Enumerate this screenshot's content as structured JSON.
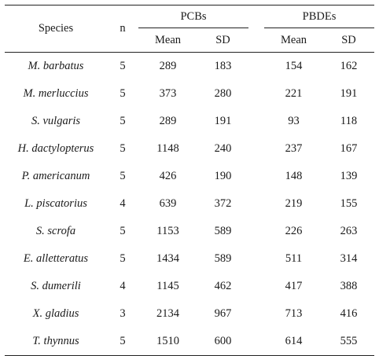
{
  "headers": {
    "species": "Species",
    "n": "n",
    "pcbs": "PCBs",
    "pbdes": "PBDEs",
    "mean": "Mean",
    "sd": "SD"
  },
  "rows": [
    {
      "species": "M. barbatus",
      "n": "5",
      "pcb_mean": "289",
      "pcb_sd": "183",
      "pbde_mean": "154",
      "pbde_sd": "162"
    },
    {
      "species": "M. merluccius",
      "n": "5",
      "pcb_mean": "373",
      "pcb_sd": "280",
      "pbde_mean": "221",
      "pbde_sd": "191"
    },
    {
      "species": "S. vulgaris",
      "n": "5",
      "pcb_mean": "289",
      "pcb_sd": "191",
      "pbde_mean": "93",
      "pbde_sd": "118"
    },
    {
      "species": "H. dactylopterus",
      "n": "5",
      "pcb_mean": "1148",
      "pcb_sd": "240",
      "pbde_mean": "237",
      "pbde_sd": "167"
    },
    {
      "species": "P. americanum",
      "n": "5",
      "pcb_mean": "426",
      "pcb_sd": "190",
      "pbde_mean": "148",
      "pbde_sd": "139"
    },
    {
      "species": "L. piscatorius",
      "n": "4",
      "pcb_mean": "639",
      "pcb_sd": "372",
      "pbde_mean": "219",
      "pbde_sd": "155"
    },
    {
      "species": "S. scrofa",
      "n": "5",
      "pcb_mean": "1153",
      "pcb_sd": "589",
      "pbde_mean": "226",
      "pbde_sd": "263"
    },
    {
      "species": "E. alletteratus",
      "n": "5",
      "pcb_mean": "1434",
      "pcb_sd": "589",
      "pbde_mean": "511",
      "pbde_sd": "314"
    },
    {
      "species": "S. dumerili",
      "n": "4",
      "pcb_mean": "1145",
      "pcb_sd": "462",
      "pbde_mean": "417",
      "pbde_sd": "388"
    },
    {
      "species": "X. gladius",
      "n": "3",
      "pcb_mean": "2134",
      "pcb_sd": "967",
      "pbde_mean": "713",
      "pbde_sd": "416"
    },
    {
      "species": "T. thynnus",
      "n": "5",
      "pcb_mean": "1510",
      "pcb_sd": "600",
      "pbde_mean": "614",
      "pbde_sd": "555"
    }
  ]
}
